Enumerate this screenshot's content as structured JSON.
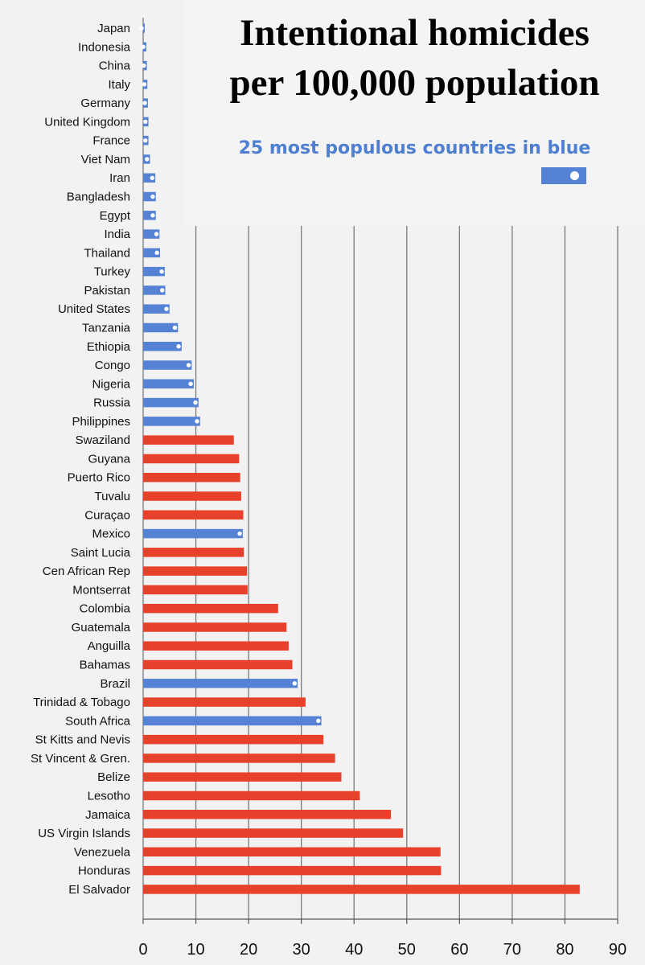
{
  "chart_data": {
    "type": "bar",
    "orientation": "horizontal",
    "title_lines": [
      "Intentional homicides",
      "per 100,000 population"
    ],
    "legend_text": "25 most populous countries in blue",
    "xlim": [
      0,
      90
    ],
    "xticks": [
      0,
      10,
      20,
      30,
      40,
      50,
      60,
      70,
      80,
      90
    ],
    "grid": "vertical",
    "colors": {
      "populous": "#5582d4",
      "other": "#e8412b"
    },
    "categories": [
      "Japan",
      "Indonesia",
      "China",
      "Italy",
      "Germany",
      "United Kingdom",
      "France",
      "Viet Nam",
      "Iran",
      "Bangladesh",
      "Egypt",
      "India",
      "Thailand",
      "Turkey",
      "Pakistan",
      "United States",
      "Tanzania",
      "Ethiopia",
      "Congo",
      "Nigeria",
      "Russia",
      "Philippines",
      "Swaziland",
      "Guyana",
      "Puerto Rico",
      "Tuvalu",
      "Curaçao",
      "Mexico",
      "Saint Lucia",
      "Cen African Rep",
      "Montserrat",
      "Colombia",
      "Guatemala",
      "Anguilla",
      "Bahamas",
      "Brazil",
      "Trinidad & Tobago",
      "South Africa",
      "St Kitts and Nevis",
      "St Vincent & Gren.",
      "Belize",
      "Lesotho",
      "Jamaica",
      "US Virgin Islands",
      "Venezuela",
      "Honduras",
      "El Salvador"
    ],
    "values": [
      0.3,
      0.6,
      0.7,
      0.8,
      0.9,
      1.0,
      1.0,
      1.3,
      2.3,
      2.4,
      2.4,
      3.1,
      3.2,
      4.1,
      4.2,
      5.0,
      6.6,
      7.3,
      9.2,
      9.6,
      10.5,
      10.8,
      17.2,
      18.2,
      18.4,
      18.6,
      19.0,
      18.9,
      19.1,
      19.7,
      19.8,
      25.6,
      27.2,
      27.6,
      28.3,
      29.3,
      30.8,
      33.8,
      34.2,
      36.4,
      37.6,
      41.1,
      47.0,
      49.3,
      56.4,
      56.5,
      82.8
    ],
    "populous": [
      true,
      true,
      true,
      true,
      true,
      true,
      true,
      true,
      true,
      true,
      true,
      true,
      true,
      true,
      true,
      true,
      true,
      true,
      true,
      true,
      true,
      true,
      false,
      false,
      false,
      false,
      false,
      true,
      false,
      false,
      false,
      false,
      false,
      false,
      false,
      true,
      false,
      true,
      false,
      false,
      false,
      false,
      false,
      false,
      false,
      false,
      false
    ]
  }
}
